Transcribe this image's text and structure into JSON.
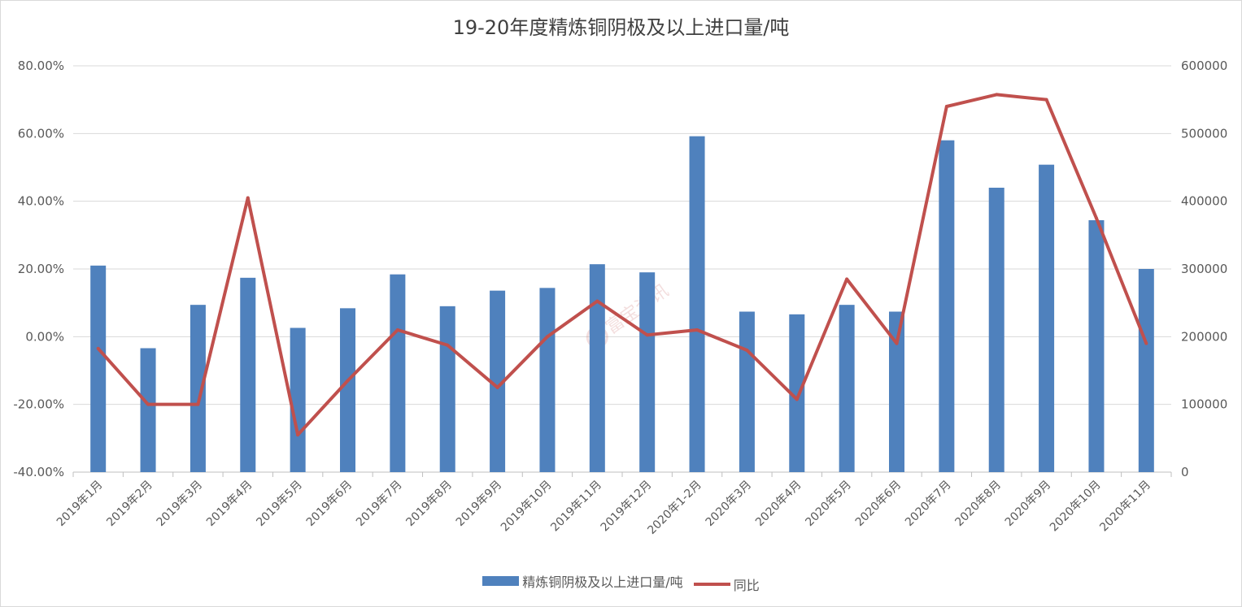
{
  "chart_data": {
    "type": "bar",
    "title": "19-20年度精炼铜阴极及以上进口量/吨",
    "categories": [
      "2019年1月",
      "2019年2月",
      "2019年3月",
      "2019年4月",
      "2019年5月",
      "2019年6月",
      "2019年7月",
      "2019年8月",
      "2019年9月",
      "2019年10月",
      "2019年11月",
      "2019年12月",
      "2020年1-2月",
      "2020年3月",
      "2020年4月",
      "2020年5月",
      "2020年6月",
      "2020年7月",
      "2020年8月",
      "2020年9月",
      "2020年10月",
      "2020年11月"
    ],
    "series": [
      {
        "name": "精炼铜阴极及以上进口量/吨",
        "type": "bar",
        "axis": "right",
        "color": "#4f81bd",
        "values": [
          305000,
          183000,
          247000,
          287000,
          213000,
          242000,
          292000,
          245000,
          268000,
          272000,
          307000,
          295000,
          496000,
          237000,
          233000,
          247000,
          237000,
          490000,
          420000,
          454000,
          372000,
          300000
        ]
      },
      {
        "name": "同比",
        "type": "line",
        "axis": "left",
        "color": "#c0504d",
        "values": [
          -3.5,
          -20.0,
          -20.0,
          41.0,
          -29.0,
          -13.0,
          2.0,
          -2.5,
          -15.0,
          0.0,
          10.5,
          0.5,
          2.0,
          -4.0,
          -18.5,
          17.0,
          -2.0,
          68.0,
          71.5,
          70.0,
          35.0,
          -2.0
        ]
      }
    ],
    "left_axis": {
      "ylim": [
        -40,
        80
      ],
      "ticks": [
        "-40.00%",
        "-20.00%",
        "0.00%",
        "20.00%",
        "40.00%",
        "60.00%",
        "80.00%"
      ]
    },
    "right_axis": {
      "ylim": [
        0,
        600000
      ],
      "ticks": [
        "0",
        "100000",
        "200000",
        "300000",
        "400000",
        "500000",
        "600000"
      ]
    },
    "grid": true,
    "legend_position": "bottom"
  },
  "watermark": "富宝资讯"
}
